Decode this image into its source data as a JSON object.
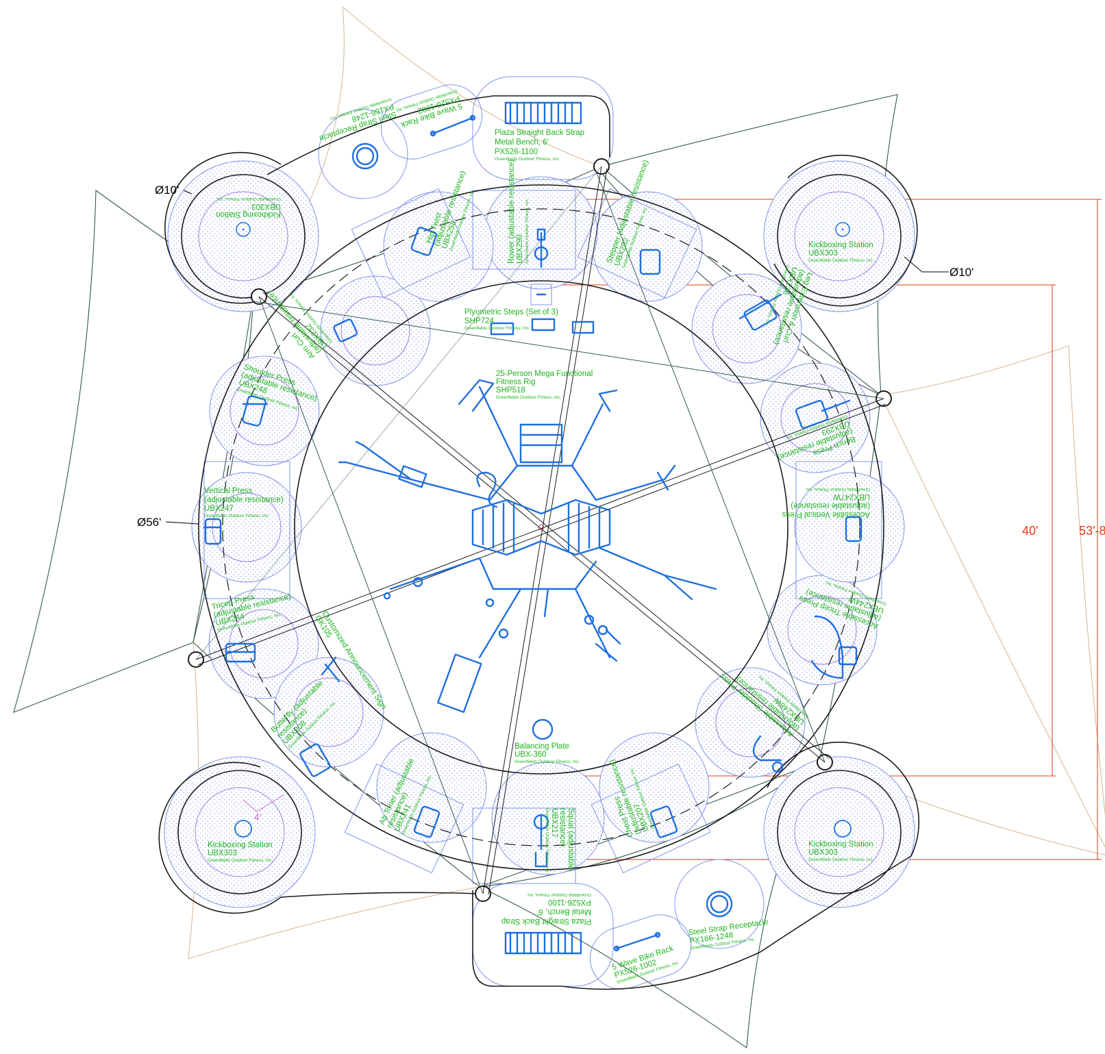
{
  "dimensions": {
    "pod_diameter_left": "Ø10'",
    "pod_diameter_right": "Ø10'",
    "ring_diameter": "Ø56'",
    "inner_span": "40'",
    "outer_span": "53'-8",
    "pad_offset": "4'"
  },
  "labels": {
    "kick_tr_name": "Kickboxing Station",
    "kick_tr_code": "UBX303",
    "kick_tr_mfr": "Greenfields Outdoor Fitness, Inc.",
    "kick_tl_name": "Kickboxing Station",
    "kick_tl_code": "UBX303",
    "kick_tl_mfr": "Greenfields Outdoor Fitness, Inc.",
    "kick_bl_name": "Kickboxing Station",
    "kick_bl_code": "UBX303",
    "kick_bl_mfr": "Greenfields Outdoor Fitness, Inc.",
    "kick_br_name": "Kickboxing Station",
    "kick_br_code": "UBX303",
    "kick_br_mfr": "Greenfields Outdoor Fitness, Inc.",
    "bench_top_1": "Plaza Straight Back Strap",
    "bench_top_2": "Metal Bench, 6'",
    "bench_top_3": "PX526-1100",
    "bench_top_4": "Greenfields Outdoor Fitness, Inc.",
    "bench_bot_1": "Plaza Straight Back Strap",
    "bench_bot_2": "Metal Bench, 6'",
    "bench_bot_3": "PX526-1100",
    "bench_bot_4": "Greenfields Outdoor Fitness, Inc.",
    "bike_top_1": "5 Wave Bike Rack",
    "bike_top_2": "PX526-1002",
    "bike_top_3": "Greenfields Outdoor Fitness, Inc.",
    "bike_bot_1": "5 Wave Bike Rack",
    "bike_bot_2": "PX526-1002",
    "bike_bot_3": "Greenfields Outdoor Fitness, Inc.",
    "recep_top_1": "Steel Strap Receptacle",
    "recep_top_2": "PX166-1248",
    "recep_top_3": "Greenfields Outdoor Fitness, Inc.",
    "recep_bot_1": "Steel Strap Receptacle",
    "recep_bot_2": "PX166-1248",
    "recep_bot_3": "Greenfields Outdoor Fitness, Inc.",
    "plyo_1": "Plyometric Steps (Set of 3)",
    "plyo_2": "SHP724",
    "plyo_3": "Greenfields Outdoor Fitness, Inc.",
    "rig_1": "25-Person Mega Functional",
    "rig_2": "Fitness Rig",
    "rig_3": "SHP518",
    "rig_4": "Greenfields Outdoor Fitness, Inc.",
    "balance_1": "Balancing Plate",
    "balance_2": "UBX-360",
    "balance_3": "Greenfields Outdoor Fitness, Inc.",
    "shoulder_1": "Shoulder Press",
    "shoulder_2": "(adjustable resistance)",
    "shoulder_3": "UBX248",
    "shoulder_4": "Greenfields Outdoor Fitness, Inc.",
    "vertical_1": "Vertical Press",
    "vertical_2": "(adjustable resistance)",
    "vertical_3": "UBX247",
    "vertical_4": "Greenfields Outdoor Fitness, Inc.",
    "tricep_1": "Tricep Press",
    "tricep_2": "(adjustable resistance)",
    "tricep_3": "UBX244",
    "tricep_4": "Greenfields Outdoor Fitness, Inc.",
    "butterfly_1": "Butterfly (adjustable",
    "butterfly_2": "resistance)",
    "butterfly_3": "UBX208",
    "butterfly_4": "Greenfields Outdoor Fitness, Inc.",
    "abtoner_1": "Ab Toner (adjustable",
    "abtoner_2": "resistance)",
    "abtoner_3": "UBX241",
    "abtoner_4": "Greenfields Outdoor Fitness, Inc.",
    "squat_1": "Squat (adjustable",
    "squat_2": "resistance)",
    "squat_3": "UBX217",
    "squat_4": "Greenfields Outdoor Fitness, Inc.",
    "rower_1": "Rower (adjustable resistance)",
    "rower_2": "UBX290",
    "rower_3": "Greenfields Outdoor Fitness, Inc.",
    "stepper_1": "Stepper (adjustable resistance)",
    "stepper_2": "UBX292",
    "stepper_3": "Greenfields Outdoor Fitness, Inc.",
    "hiptwist_1": "Hip Twist",
    "hiptwist_2": "(adjustable resistance)",
    "hiptwist_3": "UBX258",
    "hiptwist_4": "Greenfields Outdoor Fitness, Inc.",
    "armcurl_1": "Arm Curl",
    "armcurl_2": "(adjustable resistance)",
    "armcurl_3": "UBX232",
    "armcurl_4": "Greenfields Outdoor Fitness, Inc.",
    "legext_1": "Leg Extension & Curl",
    "legext_2": "(adjustable resistance)",
    "legext_3": "UBX236",
    "legext_4": "Greenfields Outdoor Fitness, Inc.",
    "bench_press_1": "Bench Press",
    "bench_press_2": "(adjustable resistance)",
    "bench_press_3": "UBX293",
    "bench_press_4": "Greenfields Outdoor Fitness, Inc.",
    "acc_vertical_1": "Accessible Vertical Press",
    "acc_vertical_2": "(adjustable resistance)",
    "acc_vertical_3": "UBX247W",
    "acc_vertical_4": "Greenfields Outdoor Fitness, Inc.",
    "acc_tricep_1": "Accessible Tricep Press",
    "acc_tricep_2": "(adjustable resistance)",
    "acc_tricep_3": "UBX244W",
    "acc_tricep_4": "Greenfields Outdoor Fitness, Inc.",
    "acc_shoulder_1": "Accessible Shoulder Press",
    "acc_shoulder_2": "(adjustable resistance)",
    "acc_shoulder_3": "UBX248W",
    "acc_shoulder_4": "Greenfields Outdoor Fitness, Inc.",
    "chest_1": "Chest Press",
    "chest_2": "(adjustable resistance)",
    "chest_3": "UBX207",
    "chest_4": "Greenfields Outdoor Fitness, Inc.",
    "sign_1": "Customized Announcement Sign",
    "sign_2": "GK105"
  },
  "colors": {
    "equipment": "#1f6fe0",
    "labels": "#1db31d",
    "zones": "#7f93e8",
    "dimensions": "#e23a1a"
  }
}
